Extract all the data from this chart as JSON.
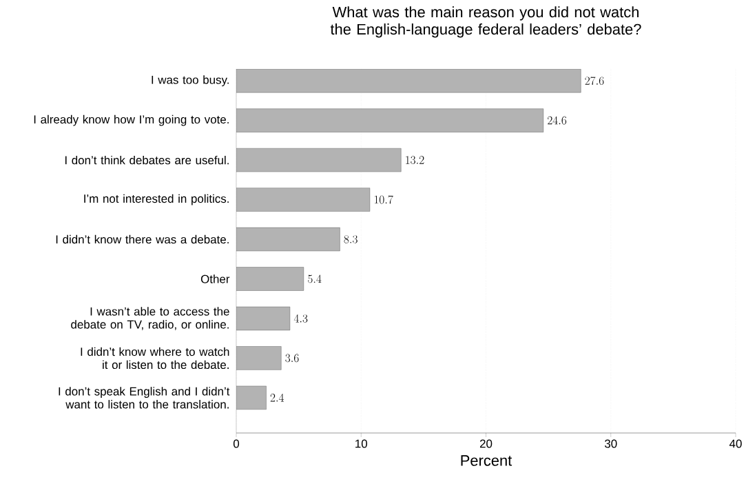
{
  "chart_data": {
    "type": "bar",
    "orientation": "horizontal",
    "title": "What was the main reason you did not watch the English-language federal leaders’ debate?",
    "categories": [
      "I was too busy.",
      "I already know how I’m going to vote.",
      "I don’t think debates are useful.",
      "I’m not interested in politics.",
      "I didn’t know there was a debate.",
      "Other",
      "I wasn’t able to access the debate on TV, radio, or online.",
      "I didn’t know where to watch it or listen to the debate.",
      "I don’t speak English and I didn’t want to listen to the translation."
    ],
    "values": [
      27.6,
      24.6,
      13.2,
      10.7,
      8.3,
      5.4,
      4.3,
      3.6,
      2.4
    ],
    "color": "#b3b3b3",
    "xlim": [
      0,
      40
    ],
    "xticks": [
      0,
      10,
      20,
      30,
      40
    ],
    "xlabel": "Percent",
    "grid": "x",
    "data_labels": true
  }
}
